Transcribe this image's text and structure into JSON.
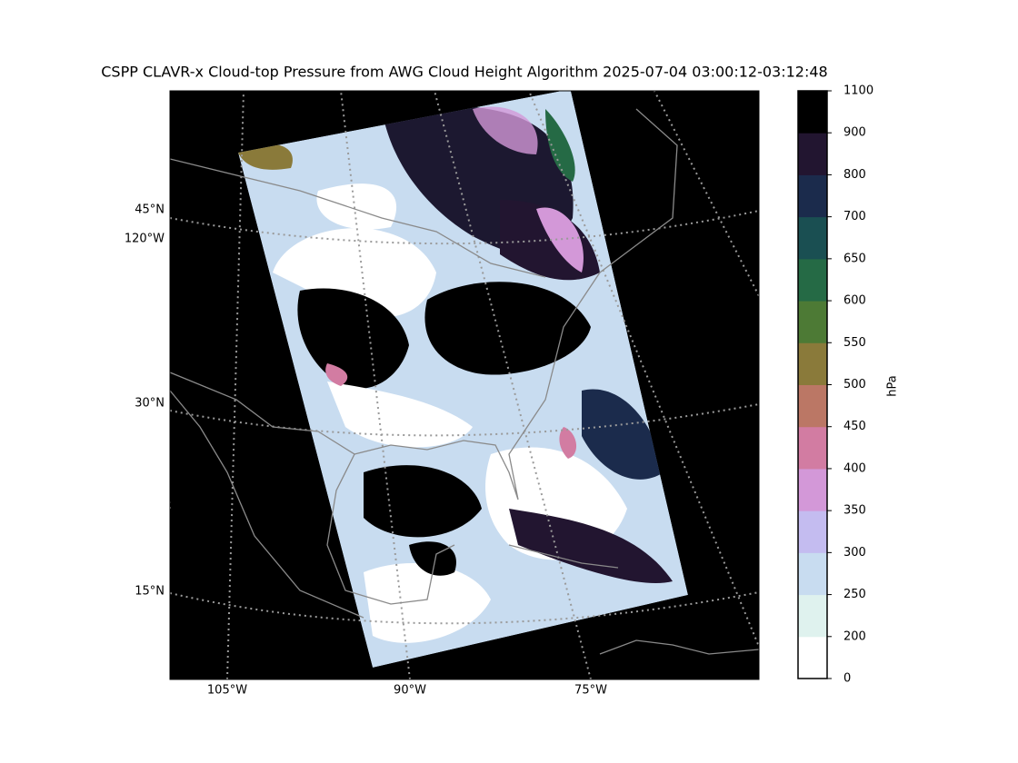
{
  "title": "CSPP CLAVR-x Cloud-top Pressure from AWG Cloud Height Algorithm 2025-07-04 03:00:12-03:12:48",
  "map": {
    "latitude_labels": [
      "45°N",
      "120°W",
      "30°N",
      "15°N"
    ],
    "longitude_labels": [
      "105°W",
      "90°W",
      "75°W"
    ]
  },
  "colorbar": {
    "label": "hPa",
    "ticks": [
      0,
      200,
      250,
      300,
      350,
      400,
      450,
      500,
      550,
      600,
      650,
      700,
      800,
      900,
      1100
    ],
    "colors": [
      "#ffffff",
      "#dff2ee",
      "#c8dcf0",
      "#c4bcf0",
      "#d398d8",
      "#d27ca2",
      "#bb7765",
      "#8a7a3a",
      "#4d7a35",
      "#256a45",
      "#1a4f52",
      "#1b2b4c",
      "#221530",
      "#000000"
    ]
  }
}
